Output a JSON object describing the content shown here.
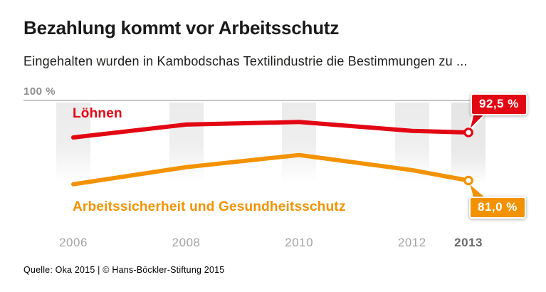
{
  "header": {
    "title": "Bezahlung kommt vor Arbeitsschutz",
    "subtitle": "Eingehalten wurden in Kambodschas Textilindustrie die Bestimmungen zu ..."
  },
  "chart_data": {
    "type": "line",
    "title": "Bezahlung kommt vor Arbeitsschutz",
    "subtitle": "Eingehalten wurden in Kambodschas Textilindustrie die Bestimmungen zu ...",
    "x": [
      2006,
      2008,
      2010,
      2012,
      2013
    ],
    "categories": [
      "2006",
      "2008",
      "2010",
      "2012",
      "2013"
    ],
    "emphasized_category": "2013",
    "y_top_label": "100 %",
    "ylim": [
      75,
      100
    ],
    "grid": false,
    "legend_position": "labels-on-chart",
    "series": [
      {
        "name": "Löhnen",
        "color": "#e30613",
        "values": [
          91.3,
          94.4,
          95.0,
          92.9,
          92.5
        ],
        "end_label": "92,5 %"
      },
      {
        "name": "Arbeitssicherheit und Gesundheitsschutz",
        "color": "#f39200",
        "values": [
          80.1,
          84.2,
          87.1,
          83.5,
          81.0
        ],
        "end_label": "81,0 %"
      }
    ]
  },
  "colors": {
    "wages_red": "#e30613",
    "safety_orange": "#f39200",
    "axis_gray": "#c6c6c6",
    "band_gray": "#ebebeb",
    "tick_gray": "#a3a3a3",
    "tick_emph_gray": "#6b6b6b"
  },
  "source": "Quelle: Oka 2015 | © Hans-Böckler-Stiftung 2015"
}
